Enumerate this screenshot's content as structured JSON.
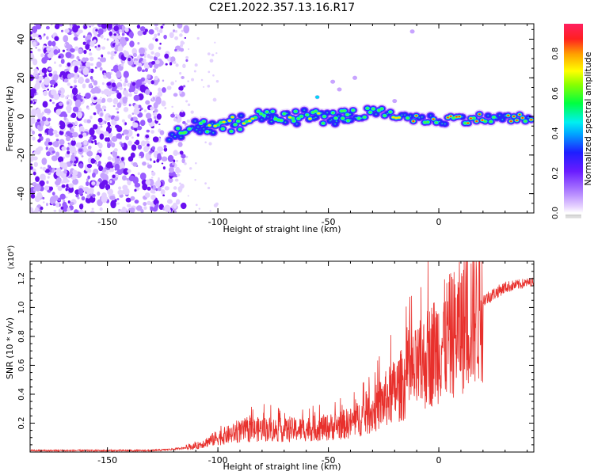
{
  "title": "C2E1.2022.357.13.16.R17",
  "colors": {
    "snr_line": "#e8302c",
    "axis": "#000000",
    "background": "#ffffff"
  },
  "chart_data": [
    {
      "type": "heatmap",
      "xlabel": "Height of straight line (km)",
      "ylabel": "Frequency (Hz)",
      "xlim": [
        -185,
        43
      ],
      "ylim": [
        -50,
        48
      ],
      "xticks": [
        -150,
        -100,
        -50,
        0
      ],
      "yticks": [
        -40,
        -20,
        0,
        20,
        40
      ],
      "colorbar": {
        "label": "Normalized spectral amplitude",
        "range": [
          0,
          0.95
        ],
        "ticks": [
          0.0,
          0.2,
          0.4,
          0.6,
          0.8
        ]
      },
      "signal_track": {
        "x": [
          -122,
          -110,
          -100,
          -90,
          -80,
          -70,
          -60,
          -50,
          -40,
          -30,
          -20,
          -10,
          0,
          10,
          20,
          30,
          43
        ],
        "y": [
          -10,
          -4,
          -4,
          -2,
          2,
          0,
          1,
          0,
          1,
          2,
          1,
          -1,
          -2,
          -1,
          -1,
          -1,
          -1
        ]
      },
      "noise_region_x": [
        -185,
        -120
      ]
    },
    {
      "type": "line",
      "xlabel": "Height of straight line (km)",
      "ylabel": "SNR (10 * v/v)",
      "y_multiplier": "(x10⁴)",
      "xlim": [
        -185,
        43
      ],
      "ylim": [
        0,
        1.32
      ],
      "xticks": [
        -150,
        -100,
        -50,
        0
      ],
      "yticks": [
        0.2,
        0.4,
        0.6,
        0.8,
        1.0,
        1.2
      ],
      "ytick_labels": [
        "0.2",
        "0.4",
        "0.6",
        "0.8",
        "1.0",
        "1.2"
      ],
      "series": [
        {
          "x": [
            -185,
            -170,
            -150,
            -130,
            -120,
            -110,
            -100,
            -90,
            -80,
            -70,
            -60,
            -50,
            -40,
            -30,
            -20,
            -10,
            0,
            10,
            20,
            30,
            43
          ],
          "y": [
            0.01,
            0.01,
            0.01,
            0.01,
            0.02,
            0.04,
            0.1,
            0.14,
            0.16,
            0.15,
            0.16,
            0.17,
            0.2,
            0.28,
            0.42,
            0.56,
            0.74,
            0.86,
            1.05,
            1.14,
            1.18
          ]
        }
      ]
    }
  ]
}
